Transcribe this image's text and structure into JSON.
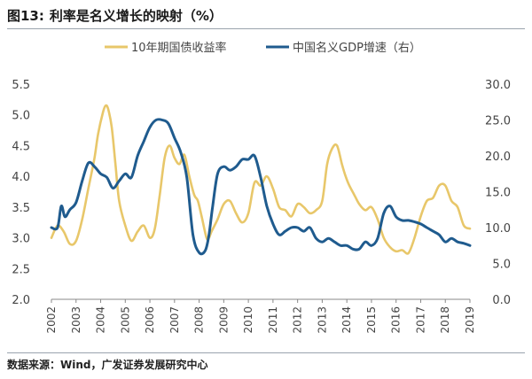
{
  "figure": {
    "title_number": "图13:",
    "title_text": "利率是名义增长的映射（%）",
    "source": "数据来源：Wind，广发证券发展研究中心"
  },
  "colors": {
    "bond_yield": "#E8C76A",
    "nominal_gdp": "#1F5B8E",
    "axis": "#888888",
    "text": "#444444"
  },
  "chart_data": {
    "type": "line",
    "legend_position": "top",
    "grid": false,
    "x_ticks": [
      "2002",
      "2003",
      "2004",
      "2005",
      "2006",
      "2007",
      "2008",
      "2009",
      "2010",
      "2011",
      "2012",
      "2013",
      "2014",
      "2015",
      "2016",
      "2017",
      "2018",
      "2019"
    ],
    "x_range": [
      2002,
      2019.0
    ],
    "y_left": {
      "range": [
        2.0,
        5.5
      ],
      "ticks": [
        "2.0",
        "2.5",
        "3.0",
        "3.5",
        "4.0",
        "4.5",
        "5.0",
        "5.5"
      ]
    },
    "y_right": {
      "range": [
        0.0,
        30.0
      ],
      "ticks": [
        "0.0",
        "5.0",
        "10.0",
        "15.0",
        "20.0",
        "25.0",
        "30.0"
      ]
    },
    "series": [
      {
        "name": "10年期国债收益率",
        "axis": "left",
        "color": "#E8C76A",
        "x": [
          2002.0,
          2002.25,
          2002.5,
          2002.75,
          2003.0,
          2003.25,
          2003.5,
          2003.75,
          2003.9,
          2004.1,
          2004.2,
          2004.3,
          2004.45,
          2004.6,
          2004.75,
          2005.0,
          2005.25,
          2005.5,
          2005.75,
          2006.0,
          2006.2,
          2006.4,
          2006.6,
          2006.8,
          2007.0,
          2007.2,
          2007.4,
          2007.6,
          2007.8,
          2007.95,
          2008.1,
          2008.3,
          2008.4,
          2008.5,
          2008.75,
          2009.0,
          2009.25,
          2009.5,
          2009.75,
          2010.0,
          2010.25,
          2010.5,
          2010.75,
          2011.0,
          2011.25,
          2011.5,
          2011.75,
          2012.0,
          2012.25,
          2012.5,
          2012.75,
          2013.0,
          2013.2,
          2013.4,
          2013.6,
          2013.8,
          2013.95,
          2014.1,
          2014.3,
          2014.5,
          2014.75,
          2015.0,
          2015.25,
          2015.5,
          2015.75,
          2016.0,
          2016.25,
          2016.5,
          2016.75,
          2017.0,
          2017.25,
          2017.5,
          2017.75,
          2018.0,
          2018.25,
          2018.5,
          2018.75,
          2019.0
        ],
        "values": [
          3.0,
          3.2,
          3.1,
          2.9,
          2.95,
          3.3,
          3.8,
          4.3,
          4.7,
          5.05,
          5.15,
          5.1,
          4.8,
          4.2,
          3.6,
          3.2,
          2.95,
          3.1,
          3.2,
          3.0,
          3.15,
          3.7,
          4.3,
          4.5,
          4.3,
          4.2,
          4.35,
          4.0,
          3.7,
          3.6,
          3.35,
          3.0,
          3.0,
          3.1,
          3.3,
          3.55,
          3.6,
          3.4,
          3.25,
          3.4,
          3.9,
          3.85,
          4.0,
          3.8,
          3.5,
          3.45,
          3.35,
          3.55,
          3.5,
          3.4,
          3.45,
          3.6,
          4.2,
          4.45,
          4.5,
          4.2,
          4.0,
          3.85,
          3.7,
          3.55,
          3.45,
          3.5,
          3.3,
          3.0,
          2.85,
          2.78,
          2.8,
          2.75,
          3.0,
          3.35,
          3.6,
          3.65,
          3.85,
          3.85,
          3.6,
          3.5,
          3.2,
          3.15
        ]
      },
      {
        "name": "中国名义GDP增速（右）",
        "axis": "right",
        "color": "#1F5B8E",
        "x": [
          2002.0,
          2002.25,
          2002.4,
          2002.55,
          2002.75,
          2003.0,
          2003.25,
          2003.5,
          2003.75,
          2004.0,
          2004.25,
          2004.5,
          2004.75,
          2005.0,
          2005.25,
          2005.5,
          2005.75,
          2006.0,
          2006.25,
          2006.5,
          2006.75,
          2007.0,
          2007.25,
          2007.5,
          2007.75,
          2008.0,
          2008.25,
          2008.4,
          2008.55,
          2008.75,
          2009.0,
          2009.25,
          2009.5,
          2009.75,
          2010.0,
          2010.25,
          2010.5,
          2010.75,
          2011.0,
          2011.25,
          2011.5,
          2011.75,
          2012.0,
          2012.25,
          2012.5,
          2012.75,
          2013.0,
          2013.25,
          2013.5,
          2013.75,
          2014.0,
          2014.25,
          2014.5,
          2014.75,
          2015.0,
          2015.25,
          2015.5,
          2015.75,
          2016.0,
          2016.25,
          2016.5,
          2016.75,
          2017.0,
          2017.25,
          2017.5,
          2017.75,
          2018.0,
          2018.25,
          2018.5,
          2018.75,
          2019.0
        ],
        "values": [
          10.0,
          10.0,
          13.0,
          11.5,
          12.5,
          13.5,
          16.5,
          19.0,
          18.5,
          17.5,
          17.0,
          15.5,
          16.5,
          17.5,
          17.0,
          20.0,
          22.0,
          24.0,
          25.0,
          25.0,
          24.5,
          22.5,
          20.5,
          17.0,
          9.0,
          6.5,
          6.8,
          9.0,
          13.0,
          17.5,
          18.5,
          18.0,
          18.5,
          19.5,
          19.5,
          20.0,
          17.0,
          13.0,
          10.5,
          9.0,
          9.5,
          10.0,
          10.0,
          9.5,
          10.0,
          8.5,
          8.0,
          8.5,
          8.0,
          7.5,
          7.5,
          7.0,
          7.0,
          8.0,
          7.5,
          8.5,
          12.0,
          13.0,
          11.5,
          11.0,
          11.0,
          10.8,
          10.5,
          10.0,
          9.5,
          9.0,
          8.0,
          8.5,
          8.0,
          7.8,
          7.5
        ]
      }
    ]
  }
}
